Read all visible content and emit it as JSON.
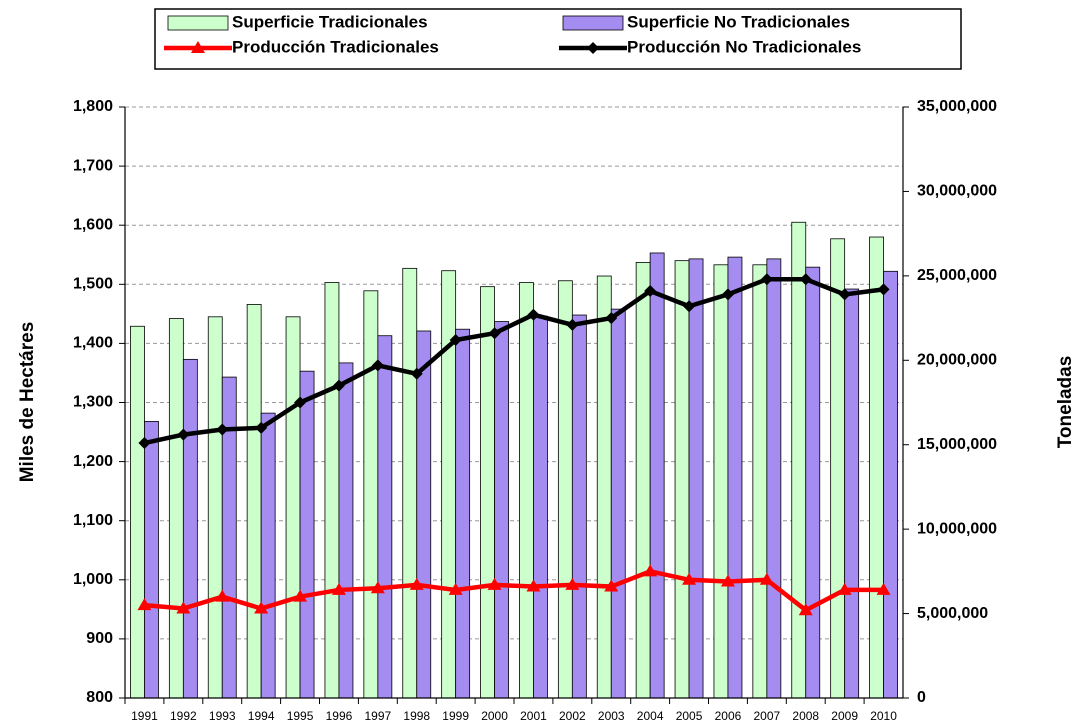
{
  "chart_data": {
    "type": "bar",
    "categories": [
      "1991",
      "1992",
      "1993",
      "1994",
      "1995",
      "1996",
      "1997",
      "1998",
      "1999",
      "2000",
      "2001",
      "2002",
      "2003",
      "2004",
      "2005",
      "2006",
      "2007",
      "2008",
      "2009",
      "2010"
    ],
    "series": [
      {
        "name": "Superficie Tradicionales",
        "type": "bar",
        "color": "#ccffcc",
        "values": [
          1429,
          1442,
          1445,
          1466,
          1445,
          1503,
          1489,
          1527,
          1523,
          1496,
          1503,
          1506,
          1514,
          1537,
          1540,
          1533,
          1533,
          1605,
          1577,
          1580
        ]
      },
      {
        "name": "Superficie No Tradicionales",
        "type": "bar",
        "color": "#a58cf0",
        "values": [
          1268,
          1373,
          1343,
          1282,
          1353,
          1367,
          1413,
          1421,
          1424,
          1437,
          1446,
          1448,
          1458,
          1553,
          1543,
          1546,
          1543,
          1529,
          1492,
          1522
        ]
      },
      {
        "name": "Producción Tradicionales",
        "type": "line",
        "marker": "triangle",
        "color": "#ff0000",
        "axis": "y2",
        "values": [
          5500000,
          5300000,
          6000000,
          5300000,
          6000000,
          6400000,
          6500000,
          6700000,
          6400000,
          6700000,
          6600000,
          6700000,
          6600000,
          7500000,
          7000000,
          6900000,
          7000000,
          5200000,
          6400000,
          6400000
        ]
      },
      {
        "name": "Producción No Tradicionales",
        "type": "line",
        "marker": "diamond",
        "color": "#000000",
        "axis": "y2",
        "values": [
          15100000,
          15600000,
          15900000,
          16000000,
          17500000,
          18500000,
          19700000,
          19200000,
          21200000,
          21600000,
          22700000,
          22100000,
          22500000,
          24100000,
          23200000,
          23900000,
          24800000,
          24800000,
          23900000,
          24200000
        ]
      }
    ],
    "y_label": "Miles de Hectáres",
    "y2_label": "Toneladas",
    "ylim": [
      800,
      1800
    ],
    "yticks": [
      800,
      900,
      {
        "value": 1000,
        "label": "1,000"
      },
      {
        "value": 1100,
        "label": "1,100"
      },
      {
        "value": 1200,
        "label": "1,200"
      },
      {
        "value": 1300,
        "label": "1,300"
      },
      {
        "value": 1400,
        "label": "1,400"
      },
      {
        "value": 1500,
        "label": "1,500"
      },
      {
        "value": 1600,
        "label": "1,600"
      },
      {
        "value": 1700,
        "label": "1,700"
      },
      {
        "value": 1800,
        "label": "1,800"
      }
    ],
    "y2lim": [
      0,
      35000000
    ],
    "y2ticks": [
      0,
      {
        "value": 5000000,
        "label": "5,000,000"
      },
      {
        "value": 10000000,
        "label": "10,000,000"
      },
      {
        "value": 15000000,
        "label": "15,000,000"
      },
      {
        "value": 20000000,
        "label": "20,000,000"
      },
      {
        "value": 25000000,
        "label": "25,000,000"
      },
      {
        "value": 30000000,
        "label": "30,000,000"
      },
      {
        "value": 35000000,
        "label": "35,000,000"
      }
    ],
    "grid": true,
    "legend": "top"
  }
}
